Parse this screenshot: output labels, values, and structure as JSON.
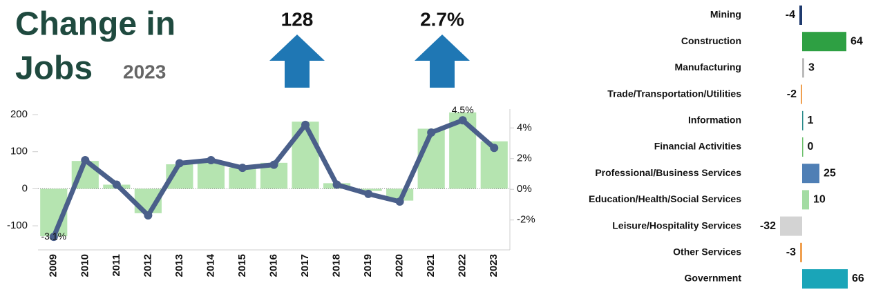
{
  "header": {
    "title_line1": "Change in",
    "title_line2": "Jobs",
    "year": "2023",
    "kpis": [
      "128",
      "2.7%"
    ]
  },
  "chart_data": [
    {
      "type": "combo",
      "categories": [
        "2009",
        "2010",
        "2011",
        "2012",
        "2013",
        "2014",
        "2015",
        "2016",
        "2017",
        "2018",
        "2019",
        "2020",
        "2021",
        "2022",
        "2023"
      ],
      "series": [
        {
          "color": "#b5e4b0",
          "kind": "bar",
          "values": [
            -128,
            75,
            11,
            -66,
            66,
            75,
            57,
            70,
            181,
            15,
            -6,
            -32,
            162,
            206,
            128
          ]
        },
        {
          "color": "#4a5f8a",
          "kind": "line",
          "axis": "y2",
          "values": [
            -3.1,
            1.9,
            0.3,
            -1.7,
            1.7,
            1.9,
            1.4,
            1.6,
            4.2,
            0.3,
            -0.3,
            -0.8,
            3.7,
            4.5,
            2.7
          ],
          "value_labels": [
            "-3.1%",
            null,
            null,
            null,
            null,
            null,
            null,
            null,
            null,
            null,
            null,
            null,
            null,
            "4.5%",
            null
          ]
        }
      ],
      "ylim": [
        -165,
        215
      ],
      "yticks": [
        -100,
        0,
        100,
        200
      ],
      "y2lim": [
        -3.95,
        5.23
      ],
      "y2ticks": [
        {
          "value": -2,
          "label": "-2%"
        },
        {
          "value": 0,
          "label": "0%"
        },
        {
          "value": 2,
          "label": "2%"
        },
        {
          "value": 4,
          "label": "4%"
        }
      ]
    },
    {
      "type": "hbar",
      "categories": [
        "Mining",
        "Construction",
        "Manufacturing",
        "Trade/Transportation/Utilities",
        "Information",
        "Financial Activities",
        "Professional/Business Services",
        "Education/Health/Social Services",
        "Leisure/Hospitality Services",
        "Other Services",
        "Government"
      ],
      "values": [
        -4,
        64,
        3,
        -2,
        1,
        0,
        25,
        10,
        -32,
        -3,
        66
      ],
      "colors": [
        "#1f3a6e",
        "#2ea043",
        "#bbbbbb",
        "#f0a050",
        "#2a8a8a",
        "#6cc06c",
        "#4f7fb5",
        "#a3dca3",
        "#d3d3d3",
        "#f0a050",
        "#1aa5b8"
      ]
    }
  ]
}
